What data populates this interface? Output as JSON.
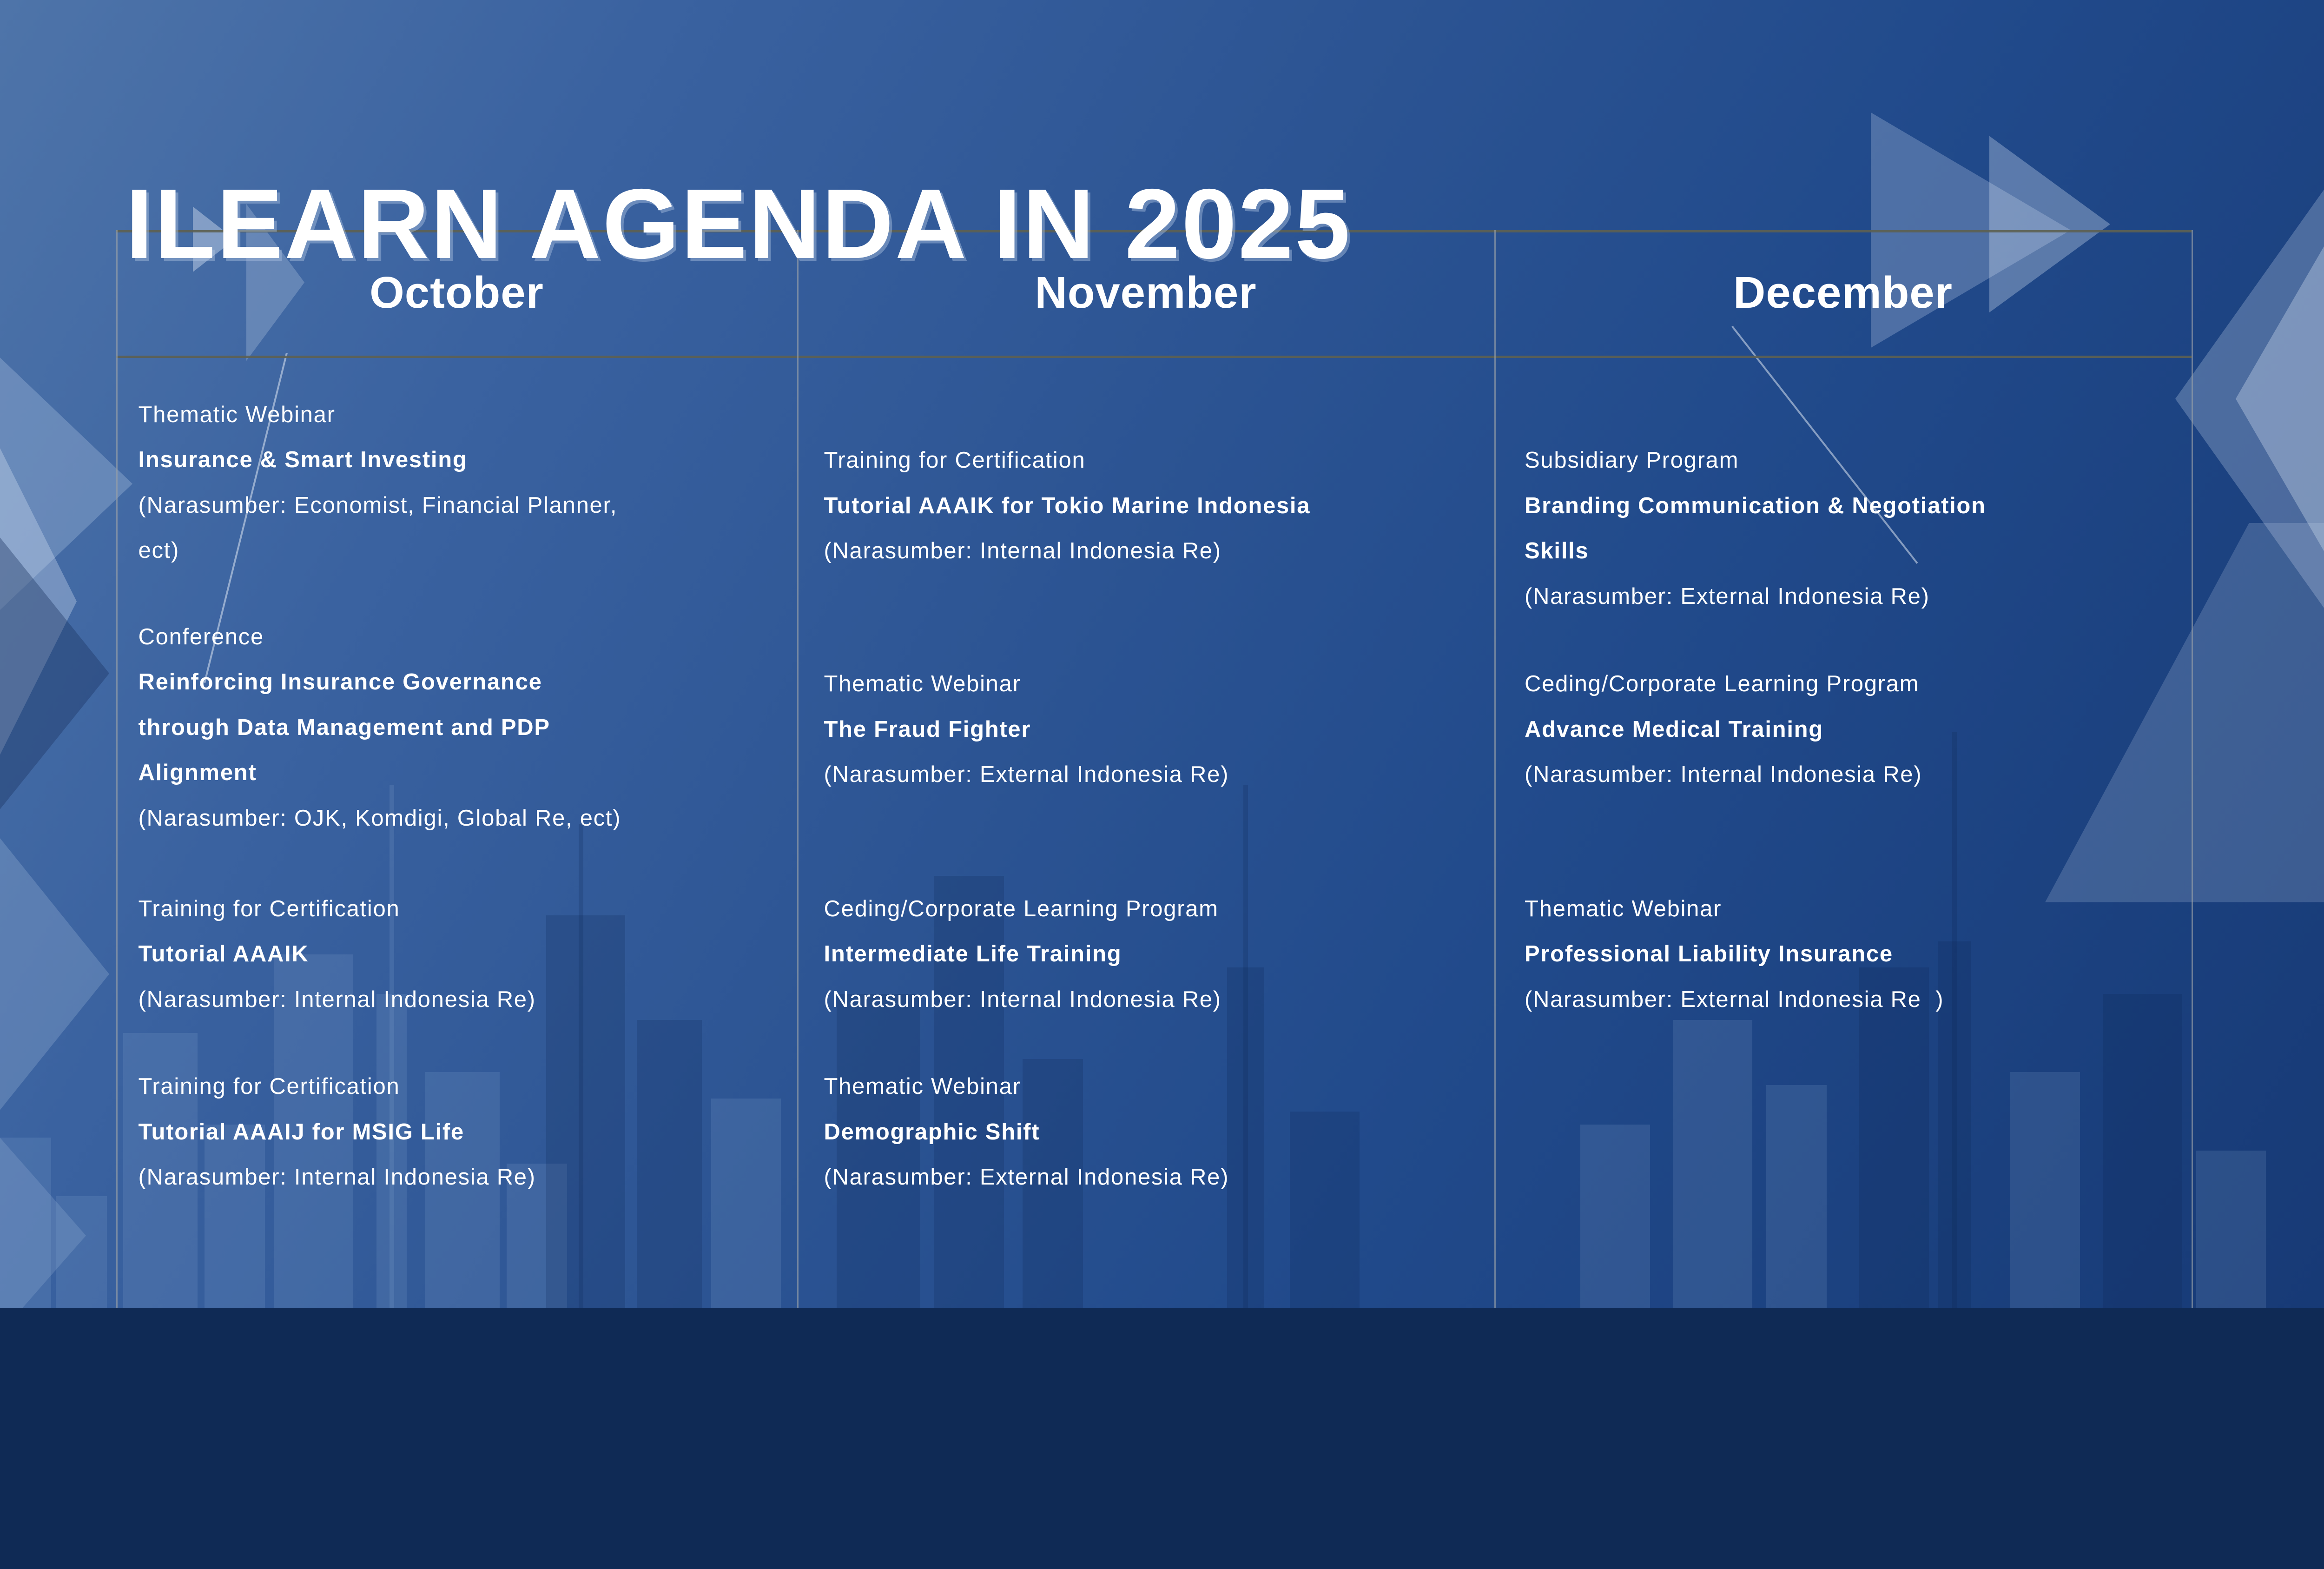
{
  "title": "ILEARN AGENDA IN 2025",
  "columns": [
    {
      "month": "October",
      "events": [
        {
          "category": "Thematic Webinar",
          "title": "Insurance & Smart Investing",
          "note": "(Narasumber: Economist, Financial Planner,\nect)"
        },
        {
          "category": "Conference",
          "title": "Reinforcing Insurance Governance\nthrough Data Management and PDP\nAlignment",
          "note": "(Narasumber: OJK, Komdigi, Global Re, ect)"
        },
        {
          "category": "Training for Certification",
          "title": "Tutorial AAAIK",
          "note": "(Narasumber: Internal Indonesia Re)"
        },
        {
          "category": "Training for Certification",
          "title": "Tutorial AAAIJ for MSIG Life",
          "note": "(Narasumber: Internal Indonesia Re)"
        }
      ]
    },
    {
      "month": "November",
      "events": [
        {
          "category": "Training for Certification",
          "title": "Tutorial AAAIK for Tokio Marine Indonesia",
          "note": "(Narasumber: Internal Indonesia Re)"
        },
        {
          "category": "Thematic Webinar",
          "title": "The Fraud Fighter",
          "note": "(Narasumber: External Indonesia Re)"
        },
        {
          "category": "Ceding/Corporate Learning Program",
          "title": "Intermediate Life Training",
          "note": "(Narasumber: Internal Indonesia Re)"
        },
        {
          "category": "Thematic Webinar",
          "title": "Demographic Shift",
          "note": "(Narasumber: External Indonesia Re)"
        }
      ]
    },
    {
      "month": "December",
      "events": [
        {
          "category": "Subsidiary Program",
          "title": "Branding Communication & Negotiation\nSkills",
          "note": "(Narasumber: External Indonesia Re)"
        },
        {
          "category": "Ceding/Corporate Learning Program",
          "title": "Advance Medical Training",
          "note": "(Narasumber: Internal Indonesia Re)"
        },
        {
          "category": "Thematic Webinar",
          "title": "Professional Liability Insurance",
          "note": "(Narasumber: External Indonesia Re  )"
        }
      ]
    }
  ],
  "colors": {
    "background_top_left": "#4e74a9",
    "background_bottom_right": "#173a76",
    "text": "#ffffff",
    "grid_horizontal_line": "#5d6052",
    "grid_vertical_line": "#98a0a8"
  }
}
